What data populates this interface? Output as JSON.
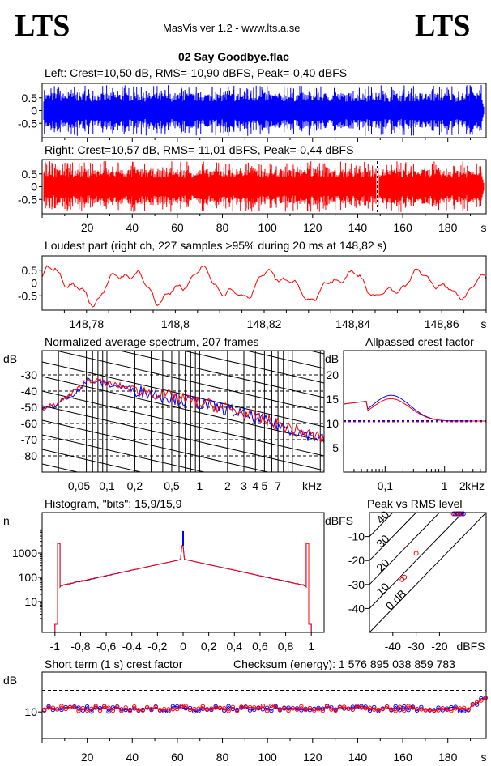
{
  "header": {
    "logo_left": "LTS",
    "logo_right": "LTS",
    "app_title": "MasVis ver 1.2 - www.lts.a.se",
    "file_name": "02 Say Goodbye.flac"
  },
  "colors": {
    "left": "#0000ff",
    "right": "#ff0000",
    "grid": "#000000"
  },
  "chart_data": [
    {
      "id": "left-waveform",
      "type": "area",
      "title": "Left: Crest=10,50 dB, RMS=-10,90 dBFS, Peak=-0,40 dBFS",
      "ylim": [
        -1,
        1
      ],
      "yticks": [
        "0.5",
        "0",
        "-0.5"
      ],
      "xlim": [
        0,
        197
      ]
    },
    {
      "id": "right-waveform",
      "type": "area",
      "title": "Right: Crest=10,57 dB, RMS=-11,01 dBFS, Peak=-0,44 dBFS",
      "ylim": [
        -1,
        1
      ],
      "yticks": [
        "0.5",
        "0",
        "-0.5"
      ],
      "xlim": [
        0,
        197
      ],
      "xticks": [
        "20",
        "40",
        "60",
        "80",
        "100",
        "120",
        "140",
        "160",
        "180"
      ],
      "xunit": "s",
      "marker_x": 148.82
    },
    {
      "id": "loudest-part",
      "type": "line",
      "title": "Loudest part (right ch, 227 samples >95% during 20 ms at 148,82 s)",
      "ylim": [
        -1,
        1
      ],
      "yticks": [
        "0.5",
        "0",
        "-0.5"
      ],
      "xlim": [
        148.77,
        148.87
      ],
      "xticks": [
        "148,78",
        "148,8",
        "148,82",
        "148,84",
        "148,86"
      ],
      "xunit": "s"
    },
    {
      "id": "spectrum",
      "type": "line",
      "title": "Normalized average spectrum, 207 frames",
      "ylabel": "dB",
      "ylim": [
        -90,
        -15
      ],
      "yticks": [
        "-30",
        "-40",
        "-50",
        "-60",
        "-70",
        "-80"
      ],
      "xscale": "log",
      "xlim_khz": [
        0.02,
        22
      ],
      "xticks": [
        "0,05",
        "0,1",
        "0,2",
        "0,5",
        "1",
        "2",
        "3",
        "4",
        "5",
        "7"
      ],
      "xunit": "kHz"
    },
    {
      "id": "allpassed-crest",
      "type": "line",
      "title": "Allpassed crest factor",
      "ylabel": "dB",
      "ylim": [
        0,
        25
      ],
      "yticks": [
        "20",
        "15",
        "10",
        "5"
      ],
      "xscale": "log",
      "xticks": [
        "0,1",
        "1",
        "2"
      ],
      "xunit": "kHz",
      "reference_db": 10.5
    },
    {
      "id": "histogram",
      "type": "line",
      "title": "Histogram, \"bits\": 15,9/15,9",
      "ylabel": "n",
      "yscale": "log",
      "yticks": [
        "1000",
        "100",
        "10"
      ],
      "xlim": [
        -1.1,
        1.1
      ],
      "xticks": [
        "-1",
        "-0,8",
        "-0,6",
        "-0,4",
        "-0,2",
        "0",
        "0,2",
        "0,4",
        "0,6",
        "0,8",
        "1"
      ]
    },
    {
      "id": "peak-vs-rms",
      "type": "scatter",
      "title": "Peak vs RMS level",
      "ylabel": "dBFS",
      "xunit": "dBFS",
      "xlim": [
        -50,
        0
      ],
      "ylim": [
        -50,
        0
      ],
      "yticks": [
        "-10",
        "-20",
        "-30",
        "-40"
      ],
      "xticks": [
        "-40",
        "-30",
        "-20"
      ],
      "diagonal_labels": [
        "40",
        "30",
        "20",
        "10",
        "0 dB"
      ],
      "points": [
        {
          "x": -30,
          "y": -17
        },
        {
          "x": -35,
          "y": -27
        },
        {
          "x": -36,
          "y": -28
        },
        {
          "x": -12,
          "y": -0.5
        }
      ]
    },
    {
      "id": "short-term-crest",
      "type": "scatter",
      "title": "Short term (1 s) crest factor",
      "checksum_label": "Checksum (energy):  1 576 895 038 859 783",
      "ylabel": "dB",
      "yticks": [
        "10"
      ],
      "xlim": [
        0,
        197
      ],
      "xticks": [
        "20",
        "40",
        "60",
        "80",
        "100",
        "120",
        "140",
        "160",
        "180"
      ],
      "xunit": "s",
      "reference_db": 16.5
    }
  ]
}
